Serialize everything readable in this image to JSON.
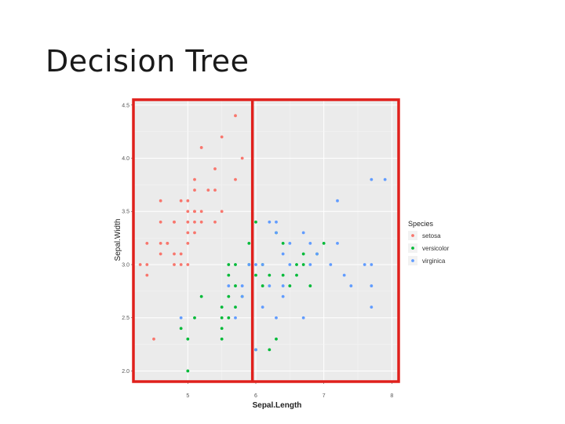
{
  "slide": {
    "title": "Decision Tree"
  },
  "chart_data": {
    "type": "scatter",
    "title": "",
    "xlabel": "Sepal.Length",
    "ylabel": "Sepal.Width",
    "xlim": [
      4.2,
      8.1
    ],
    "ylim": [
      1.9,
      4.55
    ],
    "x_ticks": [
      5,
      6,
      7,
      8
    ],
    "y_ticks": [
      2.0,
      2.5,
      3.0,
      3.5,
      4.0,
      4.5
    ],
    "x_tick_labels": [
      "5",
      "6",
      "7",
      "8"
    ],
    "y_tick_labels": [
      "2.0",
      "2.5",
      "3.0",
      "3.5",
      "4.0",
      "4.5"
    ],
    "grid": true,
    "legend": {
      "title": "Species",
      "position": "right"
    },
    "series": [
      {
        "name": "setosa",
        "color": "#F8766D",
        "points": [
          [
            4.3,
            3.0
          ],
          [
            4.4,
            3.0
          ],
          [
            4.4,
            2.9
          ],
          [
            4.4,
            3.2
          ],
          [
            4.5,
            2.3
          ],
          [
            4.6,
            3.1
          ],
          [
            4.6,
            3.4
          ],
          [
            4.6,
            3.6
          ],
          [
            4.6,
            3.2
          ],
          [
            4.7,
            3.2
          ],
          [
            4.7,
            3.2
          ],
          [
            4.8,
            3.4
          ],
          [
            4.8,
            3.0
          ],
          [
            4.8,
            3.1
          ],
          [
            4.8,
            3.4
          ],
          [
            4.9,
            3.0
          ],
          [
            4.9,
            3.1
          ],
          [
            4.9,
            3.6
          ],
          [
            5.0,
            3.6
          ],
          [
            5.0,
            3.4
          ],
          [
            5.0,
            3.0
          ],
          [
            5.0,
            3.5
          ],
          [
            5.0,
            3.2
          ],
          [
            5.0,
            3.3
          ],
          [
            5.1,
            3.5
          ],
          [
            5.1,
            3.8
          ],
          [
            5.1,
            3.7
          ],
          [
            5.1,
            3.3
          ],
          [
            5.1,
            3.4
          ],
          [
            5.1,
            3.5
          ],
          [
            5.2,
            3.5
          ],
          [
            5.2,
            3.4
          ],
          [
            5.2,
            4.1
          ],
          [
            5.3,
            3.7
          ],
          [
            5.4,
            3.9
          ],
          [
            5.4,
            3.7
          ],
          [
            5.4,
            3.4
          ],
          [
            5.5,
            4.2
          ],
          [
            5.5,
            3.5
          ],
          [
            5.7,
            4.4
          ],
          [
            5.7,
            3.8
          ],
          [
            5.8,
            4.0
          ]
        ]
      },
      {
        "name": "versicolor",
        "color": "#00BA38",
        "points": [
          [
            4.9,
            2.4
          ],
          [
            5.0,
            2.0
          ],
          [
            5.0,
            2.3
          ],
          [
            5.1,
            2.5
          ],
          [
            5.2,
            2.7
          ],
          [
            5.5,
            2.3
          ],
          [
            5.5,
            2.4
          ],
          [
            5.5,
            2.5
          ],
          [
            5.5,
            2.6
          ],
          [
            5.6,
            2.9
          ],
          [
            5.6,
            3.0
          ],
          [
            5.6,
            2.5
          ],
          [
            5.6,
            2.7
          ],
          [
            5.7,
            2.8
          ],
          [
            5.7,
            2.6
          ],
          [
            5.7,
            3.0
          ],
          [
            5.8,
            2.7
          ],
          [
            5.9,
            3.0
          ],
          [
            5.9,
            3.2
          ],
          [
            6.0,
            2.2
          ],
          [
            6.0,
            2.9
          ],
          [
            6.0,
            3.4
          ],
          [
            6.1,
            2.8
          ],
          [
            6.1,
            3.0
          ],
          [
            6.2,
            2.2
          ],
          [
            6.2,
            2.9
          ],
          [
            6.3,
            2.3
          ],
          [
            6.3,
            3.3
          ],
          [
            6.4,
            2.9
          ],
          [
            6.4,
            3.2
          ],
          [
            6.5,
            2.8
          ],
          [
            6.6,
            2.9
          ],
          [
            6.6,
            3.0
          ],
          [
            6.7,
            3.1
          ],
          [
            6.7,
            3.0
          ],
          [
            6.8,
            2.8
          ],
          [
            6.9,
            3.1
          ],
          [
            7.0,
            3.2
          ]
        ]
      },
      {
        "name": "virginica",
        "color": "#619CFF",
        "points": [
          [
            4.9,
            2.5
          ],
          [
            5.6,
            2.8
          ],
          [
            5.7,
            2.5
          ],
          [
            5.8,
            2.7
          ],
          [
            5.8,
            2.8
          ],
          [
            5.9,
            3.0
          ],
          [
            6.0,
            2.2
          ],
          [
            6.0,
            3.0
          ],
          [
            6.1,
            2.6
          ],
          [
            6.1,
            3.0
          ],
          [
            6.2,
            2.8
          ],
          [
            6.2,
            3.4
          ],
          [
            6.3,
            2.5
          ],
          [
            6.3,
            3.3
          ],
          [
            6.3,
            3.4
          ],
          [
            6.4,
            2.7
          ],
          [
            6.4,
            2.8
          ],
          [
            6.4,
            3.1
          ],
          [
            6.5,
            3.0
          ],
          [
            6.5,
            3.2
          ],
          [
            6.7,
            2.5
          ],
          [
            6.7,
            3.3
          ],
          [
            6.8,
            3.0
          ],
          [
            6.8,
            3.2
          ],
          [
            6.9,
            3.1
          ],
          [
            7.1,
            3.0
          ],
          [
            7.2,
            3.2
          ],
          [
            7.2,
            3.6
          ],
          [
            7.3,
            2.9
          ],
          [
            7.4,
            2.8
          ],
          [
            7.6,
            3.0
          ],
          [
            7.7,
            2.6
          ],
          [
            7.7,
            2.8
          ],
          [
            7.7,
            3.0
          ],
          [
            7.7,
            3.8
          ],
          [
            7.9,
            3.8
          ]
        ]
      }
    ]
  },
  "annotations": {
    "split_color": "#e0201c",
    "split_x": 5.95
  }
}
